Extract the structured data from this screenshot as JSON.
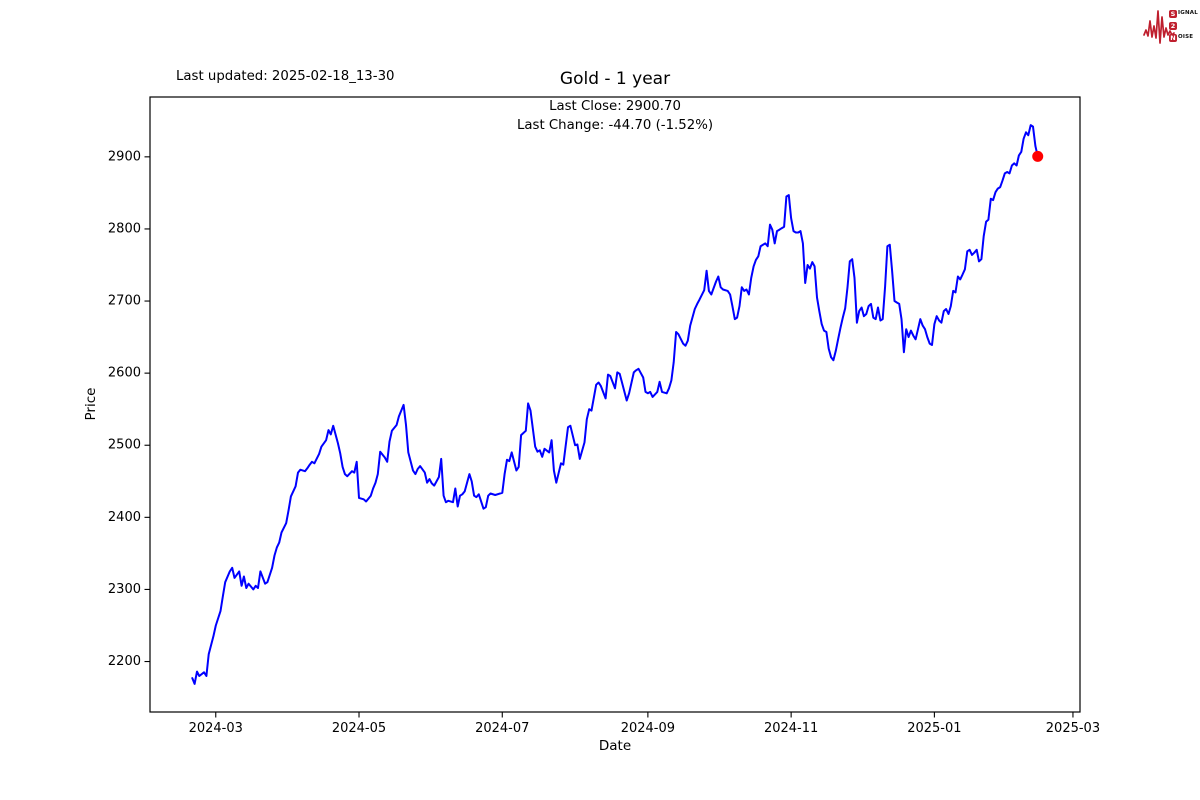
{
  "header": {
    "last_updated": "Last updated: 2025-02-18_13-30"
  },
  "logo": {
    "color": "#bf1f2e",
    "rows": [
      {
        "badge": "S",
        "rest": "IGNAL"
      },
      {
        "badge": "2",
        "rest": ""
      },
      {
        "badge": "N",
        "rest": "OISE"
      }
    ]
  },
  "chart_data": {
    "type": "line",
    "title": "Gold - 1 year",
    "annotation_line1": "Last Close: 2900.70",
    "annotation_line2": "Last Change: -44.70 (-1.52%)",
    "xlabel": "Date",
    "ylabel": "Price",
    "grid": false,
    "legend": null,
    "line_color": "#0000ff",
    "line_width": 2,
    "marker_color": "#ff0000",
    "marker_radius": 5.5,
    "xlim": [
      "2024-02-02",
      "2025-03-04"
    ],
    "ylim": [
      2130,
      2983
    ],
    "y_ticks": [
      2200,
      2300,
      2400,
      2500,
      2600,
      2700,
      2800,
      2900
    ],
    "x_ticks": [
      {
        "date": "2024-03-01",
        "label": "2024-03"
      },
      {
        "date": "2024-05-01",
        "label": "2024-05"
      },
      {
        "date": "2024-07-01",
        "label": "2024-07"
      },
      {
        "date": "2024-09-01",
        "label": "2024-09"
      },
      {
        "date": "2024-11-01",
        "label": "2024-11"
      },
      {
        "date": "2025-01-01",
        "label": "2025-01"
      },
      {
        "date": "2025-03-01",
        "label": "2025-03"
      }
    ],
    "last_point": {
      "date": "2025-02-14",
      "value": 2900.7
    },
    "series": [
      [
        "2024-02-20",
        2177
      ],
      [
        "2024-02-21",
        2169
      ],
      [
        "2024-02-22",
        2186
      ],
      [
        "2024-02-23",
        2180
      ],
      [
        "2024-02-25",
        2185
      ],
      [
        "2024-02-26",
        2180
      ],
      [
        "2024-02-27",
        2210
      ],
      [
        "2024-02-29",
        2235
      ],
      [
        "2024-03-01",
        2250
      ],
      [
        "2024-03-03",
        2270
      ],
      [
        "2024-03-04",
        2290
      ],
      [
        "2024-03-05",
        2310
      ],
      [
        "2024-03-07",
        2325
      ],
      [
        "2024-03-08",
        2330
      ],
      [
        "2024-03-09",
        2316
      ],
      [
        "2024-03-11",
        2325
      ],
      [
        "2024-03-12",
        2305
      ],
      [
        "2024-03-13",
        2318
      ],
      [
        "2024-03-14",
        2302
      ],
      [
        "2024-03-15",
        2308
      ],
      [
        "2024-03-17",
        2300
      ],
      [
        "2024-03-18",
        2305
      ],
      [
        "2024-03-19",
        2302
      ],
      [
        "2024-03-20",
        2325
      ],
      [
        "2024-03-22",
        2308
      ],
      [
        "2024-03-23",
        2310
      ],
      [
        "2024-03-25",
        2330
      ],
      [
        "2024-03-26",
        2347
      ],
      [
        "2024-03-27",
        2358
      ],
      [
        "2024-03-28",
        2365
      ],
      [
        "2024-03-29",
        2379
      ],
      [
        "2024-03-31",
        2392
      ],
      [
        "2024-04-01",
        2410
      ],
      [
        "2024-04-02",
        2429
      ],
      [
        "2024-04-04",
        2443
      ],
      [
        "2024-04-05",
        2462
      ],
      [
        "2024-04-06",
        2466
      ],
      [
        "2024-04-08",
        2464
      ],
      [
        "2024-04-09",
        2468
      ],
      [
        "2024-04-10",
        2473
      ],
      [
        "2024-04-11",
        2477
      ],
      [
        "2024-04-12",
        2475
      ],
      [
        "2024-04-14",
        2488
      ],
      [
        "2024-04-15",
        2498
      ],
      [
        "2024-04-17",
        2507
      ],
      [
        "2024-04-18",
        2521
      ],
      [
        "2024-04-19",
        2515
      ],
      [
        "2024-04-20",
        2527
      ],
      [
        "2024-04-22",
        2503
      ],
      [
        "2024-04-23",
        2489
      ],
      [
        "2024-04-24",
        2470
      ],
      [
        "2024-04-25",
        2460
      ],
      [
        "2024-04-26",
        2457
      ],
      [
        "2024-04-28",
        2464
      ],
      [
        "2024-04-29",
        2462
      ],
      [
        "2024-04-30",
        2477
      ],
      [
        "2024-05-01",
        2427
      ],
      [
        "2024-05-03",
        2425
      ],
      [
        "2024-05-04",
        2422
      ],
      [
        "2024-05-06",
        2430
      ],
      [
        "2024-05-07",
        2440
      ],
      [
        "2024-05-08",
        2448
      ],
      [
        "2024-05-09",
        2460
      ],
      [
        "2024-05-10",
        2491
      ],
      [
        "2024-05-12",
        2483
      ],
      [
        "2024-05-13",
        2477
      ],
      [
        "2024-05-14",
        2505
      ],
      [
        "2024-05-15",
        2520
      ],
      [
        "2024-05-17",
        2528
      ],
      [
        "2024-05-18",
        2540
      ],
      [
        "2024-05-20",
        2556
      ],
      [
        "2024-05-21",
        2528
      ],
      [
        "2024-05-22",
        2490
      ],
      [
        "2024-05-24",
        2465
      ],
      [
        "2024-05-25",
        2460
      ],
      [
        "2024-05-26",
        2467
      ],
      [
        "2024-05-27",
        2471
      ],
      [
        "2024-05-29",
        2462
      ],
      [
        "2024-05-30",
        2448
      ],
      [
        "2024-05-31",
        2453
      ],
      [
        "2024-06-01",
        2447
      ],
      [
        "2024-06-02",
        2444
      ],
      [
        "2024-06-04",
        2456
      ],
      [
        "2024-06-05",
        2481
      ],
      [
        "2024-06-06",
        2430
      ],
      [
        "2024-06-07",
        2421
      ],
      [
        "2024-06-08",
        2423
      ],
      [
        "2024-06-10",
        2421
      ],
      [
        "2024-06-11",
        2440
      ],
      [
        "2024-06-12",
        2415
      ],
      [
        "2024-06-13",
        2430
      ],
      [
        "2024-06-14",
        2432
      ],
      [
        "2024-06-15",
        2436
      ],
      [
        "2024-06-17",
        2460
      ],
      [
        "2024-06-18",
        2450
      ],
      [
        "2024-06-19",
        2430
      ],
      [
        "2024-06-20",
        2428
      ],
      [
        "2024-06-21",
        2432
      ],
      [
        "2024-06-23",
        2412
      ],
      [
        "2024-06-24",
        2414
      ],
      [
        "2024-06-25",
        2430
      ],
      [
        "2024-06-26",
        2433
      ],
      [
        "2024-06-28",
        2431
      ],
      [
        "2024-07-01",
        2434
      ],
      [
        "2024-07-02",
        2460
      ],
      [
        "2024-07-03",
        2480
      ],
      [
        "2024-07-04",
        2478
      ],
      [
        "2024-07-05",
        2490
      ],
      [
        "2024-07-07",
        2465
      ],
      [
        "2024-07-08",
        2470
      ],
      [
        "2024-07-09",
        2514
      ],
      [
        "2024-07-10",
        2517
      ],
      [
        "2024-07-11",
        2520
      ],
      [
        "2024-07-12",
        2558
      ],
      [
        "2024-07-13",
        2548
      ],
      [
        "2024-07-15",
        2498
      ],
      [
        "2024-07-16",
        2491
      ],
      [
        "2024-07-17",
        2493
      ],
      [
        "2024-07-18",
        2484
      ],
      [
        "2024-07-19",
        2495
      ],
      [
        "2024-07-21",
        2490
      ],
      [
        "2024-07-22",
        2507
      ],
      [
        "2024-07-23",
        2465
      ],
      [
        "2024-07-24",
        2448
      ],
      [
        "2024-07-26",
        2475
      ],
      [
        "2024-07-27",
        2473
      ],
      [
        "2024-07-29",
        2525
      ],
      [
        "2024-07-30",
        2527
      ],
      [
        "2024-08-01",
        2500
      ],
      [
        "2024-08-02",
        2501
      ],
      [
        "2024-08-03",
        2481
      ],
      [
        "2024-08-05",
        2504
      ],
      [
        "2024-08-06",
        2536
      ],
      [
        "2024-08-07",
        2550
      ],
      [
        "2024-08-08",
        2548
      ],
      [
        "2024-08-10",
        2584
      ],
      [
        "2024-08-11",
        2587
      ],
      [
        "2024-08-12",
        2582
      ],
      [
        "2024-08-14",
        2565
      ],
      [
        "2024-08-15",
        2598
      ],
      [
        "2024-08-16",
        2596
      ],
      [
        "2024-08-18",
        2579
      ],
      [
        "2024-08-19",
        2601
      ],
      [
        "2024-08-20",
        2599
      ],
      [
        "2024-08-21",
        2587
      ],
      [
        "2024-08-23",
        2562
      ],
      [
        "2024-08-24",
        2572
      ],
      [
        "2024-08-26",
        2601
      ],
      [
        "2024-08-27",
        2604
      ],
      [
        "2024-08-28",
        2606
      ],
      [
        "2024-08-30",
        2594
      ],
      [
        "2024-08-31",
        2574
      ],
      [
        "2024-09-01",
        2572
      ],
      [
        "2024-09-02",
        2574
      ],
      [
        "2024-09-03",
        2567
      ],
      [
        "2024-09-05",
        2574
      ],
      [
        "2024-09-06",
        2588
      ],
      [
        "2024-09-07",
        2574
      ],
      [
        "2024-09-09",
        2572
      ],
      [
        "2024-09-10",
        2579
      ],
      [
        "2024-09-11",
        2590
      ],
      [
        "2024-09-12",
        2615
      ],
      [
        "2024-09-13",
        2657
      ],
      [
        "2024-09-14",
        2654
      ],
      [
        "2024-09-16",
        2641
      ],
      [
        "2024-09-17",
        2638
      ],
      [
        "2024-09-18",
        2645
      ],
      [
        "2024-09-19",
        2666
      ],
      [
        "2024-09-21",
        2689
      ],
      [
        "2024-09-22",
        2696
      ],
      [
        "2024-09-23",
        2702
      ],
      [
        "2024-09-25",
        2715
      ],
      [
        "2024-09-26",
        2742
      ],
      [
        "2024-09-27",
        2714
      ],
      [
        "2024-09-28",
        2709
      ],
      [
        "2024-09-30",
        2727
      ],
      [
        "2024-10-01",
        2734
      ],
      [
        "2024-10-02",
        2719
      ],
      [
        "2024-10-03",
        2716
      ],
      [
        "2024-10-05",
        2714
      ],
      [
        "2024-10-06",
        2709
      ],
      [
        "2024-10-07",
        2693
      ],
      [
        "2024-10-08",
        2675
      ],
      [
        "2024-10-09",
        2677
      ],
      [
        "2024-10-10",
        2693
      ],
      [
        "2024-10-11",
        2719
      ],
      [
        "2024-10-12",
        2714
      ],
      [
        "2024-10-13",
        2716
      ],
      [
        "2024-10-14",
        2709
      ],
      [
        "2024-10-15",
        2732
      ],
      [
        "2024-10-16",
        2748
      ],
      [
        "2024-10-17",
        2757
      ],
      [
        "2024-10-18",
        2762
      ],
      [
        "2024-10-19",
        2776
      ],
      [
        "2024-10-20",
        2778
      ],
      [
        "2024-10-21",
        2780
      ],
      [
        "2024-10-22",
        2776
      ],
      [
        "2024-10-23",
        2806
      ],
      [
        "2024-10-24",
        2799
      ],
      [
        "2024-10-25",
        2780
      ],
      [
        "2024-10-26",
        2797
      ],
      [
        "2024-10-27",
        2799
      ],
      [
        "2024-10-28",
        2801
      ],
      [
        "2024-10-29",
        2803
      ],
      [
        "2024-10-30",
        2845
      ],
      [
        "2024-10-31",
        2847
      ],
      [
        "2024-11-01",
        2815
      ],
      [
        "2024-11-02",
        2797
      ],
      [
        "2024-11-03",
        2795
      ],
      [
        "2024-11-04",
        2795
      ],
      [
        "2024-11-05",
        2797
      ],
      [
        "2024-11-06",
        2780
      ],
      [
        "2024-11-07",
        2725
      ],
      [
        "2024-11-08",
        2750
      ],
      [
        "2024-11-09",
        2745
      ],
      [
        "2024-11-10",
        2754
      ],
      [
        "2024-11-11",
        2748
      ],
      [
        "2024-11-12",
        2705
      ],
      [
        "2024-11-13",
        2686
      ],
      [
        "2024-11-14",
        2668
      ],
      [
        "2024-11-15",
        2659
      ],
      [
        "2024-11-16",
        2657
      ],
      [
        "2024-11-17",
        2634
      ],
      [
        "2024-11-18",
        2622
      ],
      [
        "2024-11-19",
        2618
      ],
      [
        "2024-11-20",
        2631
      ],
      [
        "2024-11-21",
        2647
      ],
      [
        "2024-11-22",
        2663
      ],
      [
        "2024-11-23",
        2677
      ],
      [
        "2024-11-24",
        2690
      ],
      [
        "2024-11-25",
        2719
      ],
      [
        "2024-11-26",
        2755
      ],
      [
        "2024-11-27",
        2758
      ],
      [
        "2024-11-28",
        2732
      ],
      [
        "2024-11-29",
        2670
      ],
      [
        "2024-11-30",
        2686
      ],
      [
        "2024-12-01",
        2691
      ],
      [
        "2024-12-02",
        2679
      ],
      [
        "2024-12-03",
        2682
      ],
      [
        "2024-12-04",
        2693
      ],
      [
        "2024-12-05",
        2696
      ],
      [
        "2024-12-06",
        2677
      ],
      [
        "2024-12-07",
        2675
      ],
      [
        "2024-12-08",
        2691
      ],
      [
        "2024-12-09",
        2673
      ],
      [
        "2024-12-10",
        2675
      ],
      [
        "2024-12-11",
        2720
      ],
      [
        "2024-12-12",
        2776
      ],
      [
        "2024-12-13",
        2778
      ],
      [
        "2024-12-14",
        2742
      ],
      [
        "2024-12-15",
        2700
      ],
      [
        "2024-12-16",
        2698
      ],
      [
        "2024-12-17",
        2696
      ],
      [
        "2024-12-18",
        2675
      ],
      [
        "2024-12-19",
        2629
      ],
      [
        "2024-12-20",
        2661
      ],
      [
        "2024-12-21",
        2650
      ],
      [
        "2024-12-22",
        2659
      ],
      [
        "2024-12-23",
        2652
      ],
      [
        "2024-12-24",
        2647
      ],
      [
        "2024-12-25",
        2661
      ],
      [
        "2024-12-26",
        2675
      ],
      [
        "2024-12-27",
        2666
      ],
      [
        "2024-12-28",
        2661
      ],
      [
        "2024-12-29",
        2650
      ],
      [
        "2024-12-30",
        2641
      ],
      [
        "2024-12-31",
        2639
      ],
      [
        "2025-01-01",
        2668
      ],
      [
        "2025-01-02",
        2679
      ],
      [
        "2025-01-03",
        2673
      ],
      [
        "2025-01-04",
        2670
      ],
      [
        "2025-01-05",
        2686
      ],
      [
        "2025-01-06",
        2689
      ],
      [
        "2025-01-07",
        2682
      ],
      [
        "2025-01-08",
        2693
      ],
      [
        "2025-01-09",
        2714
      ],
      [
        "2025-01-10",
        2712
      ],
      [
        "2025-01-11",
        2734
      ],
      [
        "2025-01-12",
        2730
      ],
      [
        "2025-01-13",
        2737
      ],
      [
        "2025-01-14",
        2744
      ],
      [
        "2025-01-15",
        2769
      ],
      [
        "2025-01-16",
        2771
      ],
      [
        "2025-01-17",
        2764
      ],
      [
        "2025-01-18",
        2767
      ],
      [
        "2025-01-19",
        2771
      ],
      [
        "2025-01-20",
        2755
      ],
      [
        "2025-01-21",
        2758
      ],
      [
        "2025-01-22",
        2790
      ],
      [
        "2025-01-23",
        2810
      ],
      [
        "2025-01-24",
        2813
      ],
      [
        "2025-01-25",
        2842
      ],
      [
        "2025-01-26",
        2840
      ],
      [
        "2025-01-27",
        2851
      ],
      [
        "2025-01-28",
        2856
      ],
      [
        "2025-01-29",
        2858
      ],
      [
        "2025-01-30",
        2867
      ],
      [
        "2025-01-31",
        2877
      ],
      [
        "2025-02-01",
        2879
      ],
      [
        "2025-02-02",
        2877
      ],
      [
        "2025-02-03",
        2888
      ],
      [
        "2025-02-04",
        2891
      ],
      [
        "2025-02-05",
        2888
      ],
      [
        "2025-02-06",
        2902
      ],
      [
        "2025-02-07",
        2907
      ],
      [
        "2025-02-08",
        2925
      ],
      [
        "2025-02-09",
        2934
      ],
      [
        "2025-02-10",
        2930
      ],
      [
        "2025-02-11",
        2944
      ],
      [
        "2025-02-12",
        2942
      ],
      [
        "2025-02-13",
        2915
      ],
      [
        "2025-02-14",
        2900.7
      ]
    ]
  }
}
